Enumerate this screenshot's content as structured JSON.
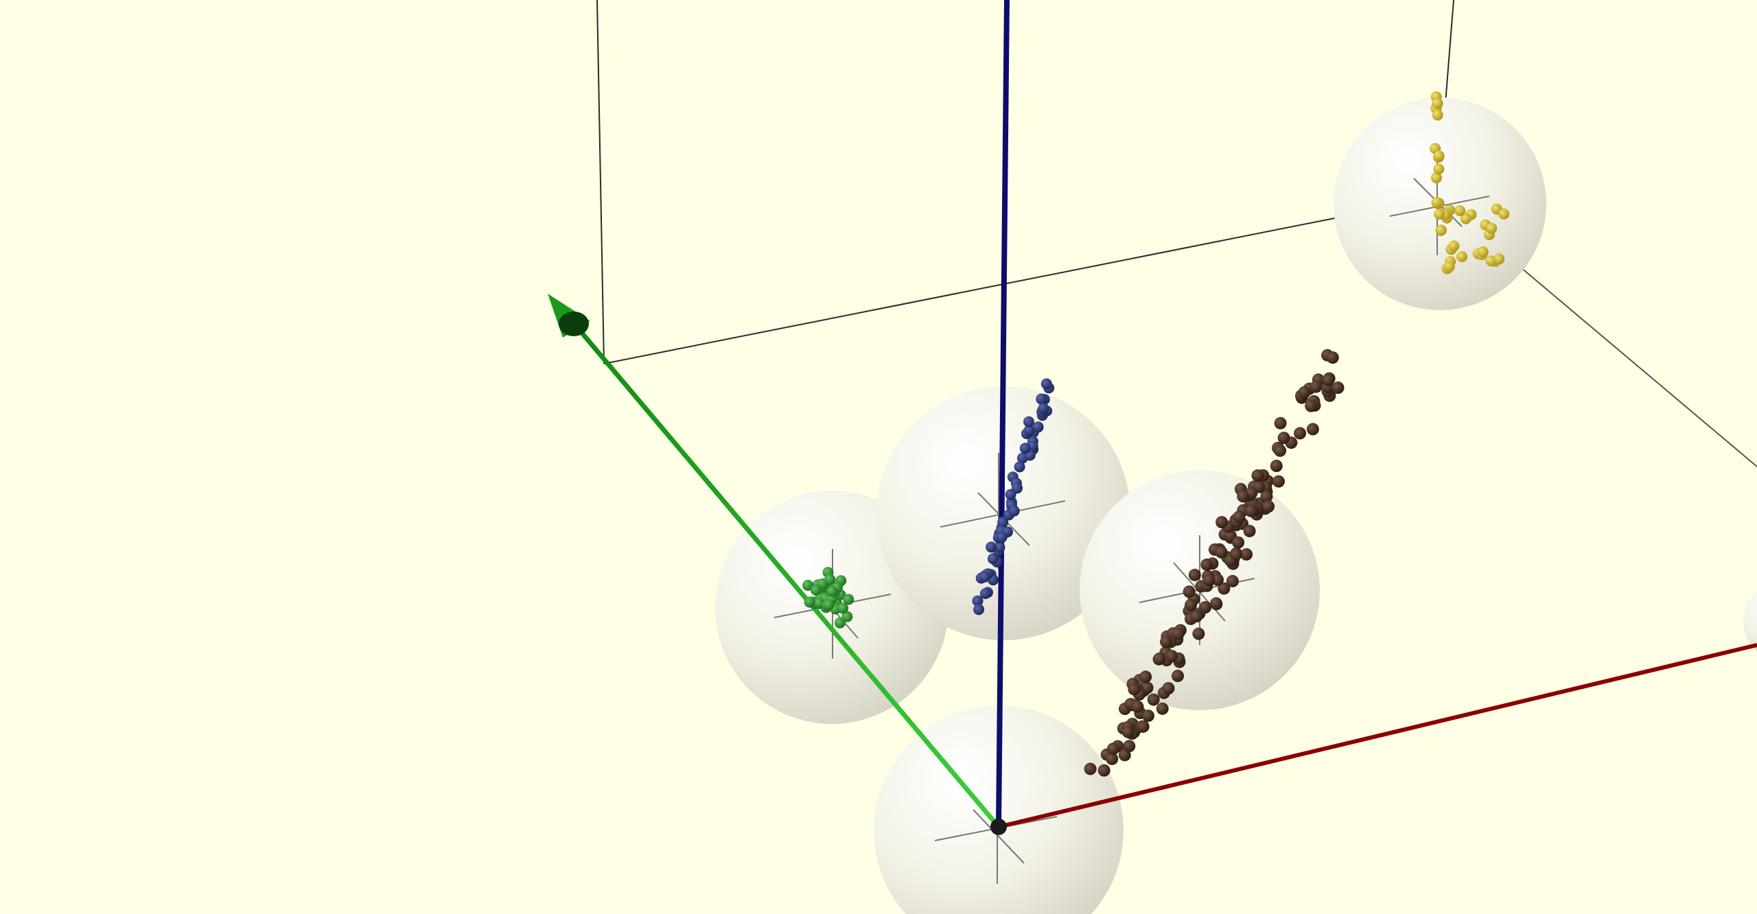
{
  "viewer": {
    "background_color": "#ffffe5",
    "projection": "perspective",
    "axes": [
      {
        "name": "x",
        "color": "#8b0000"
      },
      {
        "name": "y",
        "color": "#22bb22"
      },
      {
        "name": "z",
        "color": "#0d0d6b"
      }
    ],
    "bounding_box": {
      "color": "#222222"
    },
    "reference_spheres": {
      "color": "#f2f1e6",
      "count": 6
    },
    "point_clouds": [
      {
        "name": "green-cluster",
        "color": "#2e8b2e"
      },
      {
        "name": "blue-cluster",
        "color": "#2f3e7a"
      },
      {
        "name": "brown-cluster",
        "color": "#4a3428"
      },
      {
        "name": "yellow-cluster",
        "color": "#d8c22e"
      }
    ]
  }
}
